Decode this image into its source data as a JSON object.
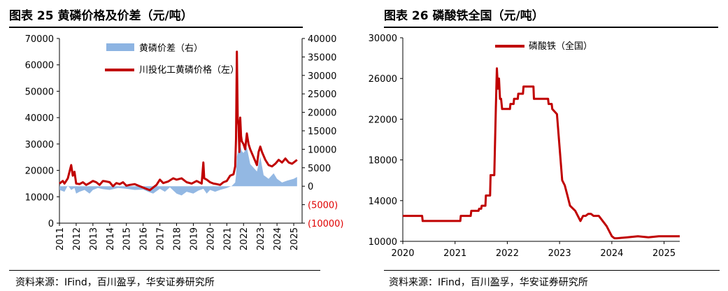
{
  "left": {
    "title": "图表 25 黄磷价格及价差（元/吨）",
    "source": "资料来源：IFind，百川盈孚，华安证券研究所",
    "chart_data": {
      "type": "line",
      "legend_position": "top-center",
      "legend": [
        "黄磷价差（右）",
        "川投化工黄磷价格（左）"
      ],
      "left_axis": {
        "ylim": [
          0,
          70000
        ],
        "ticks": [
          "0",
          "10000",
          "20000",
          "30000",
          "40000",
          "50000",
          "60000",
          "70000"
        ]
      },
      "right_axis": {
        "ylim": [
          -10000,
          40000
        ],
        "ticks": [
          "(10000)",
          "(5000)",
          "0",
          "5000",
          "10000",
          "15000",
          "20000",
          "25000",
          "30000",
          "35000",
          "40000"
        ]
      },
      "x_ticks": [
        "2011",
        "2012",
        "2013",
        "2014",
        "2015",
        "2016",
        "2017",
        "2018",
        "2019",
        "2020",
        "2021",
        "2022",
        "2023",
        "2024",
        "2025"
      ],
      "series": [
        {
          "name": "川投化工黄磷价格（左）",
          "type": "line",
          "axis": "left",
          "color": "#c00000",
          "x": [
            2011.0,
            2011.2,
            2011.3,
            2011.5,
            2011.7,
            2011.8,
            2011.9,
            2012.0,
            2012.2,
            2012.4,
            2012.6,
            2012.8,
            2013.0,
            2013.2,
            2013.4,
            2013.6,
            2013.8,
            2014.0,
            2014.2,
            2014.4,
            2014.6,
            2014.8,
            2015.0,
            2015.2,
            2015.5,
            2015.8,
            2016.0,
            2016.2,
            2016.4,
            2016.6,
            2016.8,
            2017.0,
            2017.2,
            2017.5,
            2017.8,
            2018.0,
            2018.3,
            2018.6,
            2018.9,
            2019.2,
            2019.5,
            2019.6,
            2019.65,
            2019.8,
            2020.0,
            2020.2,
            2020.4,
            2020.6,
            2020.8,
            2021.0,
            2021.2,
            2021.4,
            2021.5,
            2021.55,
            2021.6,
            2021.65,
            2021.7,
            2021.75,
            2021.8,
            2021.85,
            2021.9,
            2022.0,
            2022.1,
            2022.2,
            2022.3,
            2022.4,
            2022.6,
            2022.8,
            2022.9,
            2023.0,
            2023.1,
            2023.3,
            2023.5,
            2023.7,
            2023.9,
            2024.1,
            2024.3,
            2024.5,
            2024.7,
            2024.9,
            2025.1,
            2025.2
          ],
          "y": [
            15000,
            16000,
            15000,
            17000,
            22000,
            18000,
            19500,
            15000,
            14800,
            15500,
            14500,
            15200,
            16000,
            15500,
            14500,
            16000,
            15800,
            15500,
            14000,
            15200,
            14800,
            15500,
            14200,
            14500,
            14800,
            14000,
            13500,
            13000,
            12500,
            13500,
            14500,
            16500,
            15200,
            15800,
            17000,
            16500,
            17000,
            15500,
            15000,
            16000,
            15000,
            23000,
            17000,
            16500,
            15500,
            15000,
            14800,
            14500,
            15500,
            16000,
            18000,
            18500,
            21500,
            32000,
            65000,
            40000,
            37000,
            27000,
            40000,
            33000,
            31000,
            30000,
            28000,
            34000,
            30000,
            28000,
            25000,
            22000,
            27000,
            29000,
            27000,
            24000,
            22000,
            21500,
            22500,
            24000,
            23000,
            24500,
            23000,
            22500,
            23500,
            24000
          ]
        },
        {
          "name": "黄磷价差（右）",
          "type": "area",
          "axis": "right",
          "color": "#8db4e2",
          "x": [
            2011.0,
            2011.3,
            2011.5,
            2011.7,
            2011.9,
            2012.0,
            2012.2,
            2012.5,
            2012.8,
            2013.0,
            2013.3,
            2013.6,
            2014.0,
            2014.5,
            2015.0,
            2015.5,
            2016.0,
            2016.3,
            2016.6,
            2017.0,
            2017.3,
            2017.6,
            2018.0,
            2018.3,
            2018.6,
            2019.0,
            2019.3,
            2019.6,
            2019.8,
            2020.0,
            2020.3,
            2020.6,
            2021.0,
            2021.3,
            2021.5,
            2021.55,
            2021.6,
            2021.7,
            2021.8,
            2021.9,
            2022.0,
            2022.2,
            2022.4,
            2022.6,
            2022.8,
            2023.0,
            2023.2,
            2023.5,
            2023.8,
            2024.0,
            2024.3,
            2024.6,
            2025.0,
            2025.2
          ],
          "y": [
            -1000,
            -1500,
            200,
            -1000,
            -500,
            -2000,
            -1500,
            -1000,
            -2000,
            -1000,
            -500,
            -800,
            -1000,
            -500,
            -700,
            -1000,
            -900,
            -1500,
            -2000,
            -700,
            -1500,
            -300,
            -2000,
            -2500,
            -1500,
            -2000,
            -1200,
            -700,
            -2000,
            -1000,
            -1500,
            -1000,
            -500,
            100,
            1000,
            3000,
            8000,
            10000,
            11000,
            9500,
            9000,
            10500,
            6000,
            5000,
            4000,
            8000,
            3000,
            2000,
            3500,
            2000,
            1000,
            1500,
            2000,
            2500
          ]
        }
      ]
    }
  },
  "right": {
    "title": "图表 26 磷酸铁全国（元/吨）",
    "source": "资料来源：IFind，百川盈孚，华安证券研究所",
    "chart_data": {
      "type": "line",
      "legend_position": "top-center",
      "legend": [
        "磷酸铁（全国）"
      ],
      "ylim": [
        10000,
        30000
      ],
      "y_ticks": [
        "10000",
        "14000",
        "18000",
        "22000",
        "26000",
        "30000"
      ],
      "xlim": [
        2020,
        2025.3
      ],
      "x_ticks": [
        "2020",
        "2021",
        "2022",
        "2023",
        "2024",
        "2025"
      ],
      "series": [
        {
          "name": "磷酸铁（全国）",
          "color": "#c00000",
          "x": [
            2020.0,
            2020.37,
            2020.38,
            2021.1,
            2021.11,
            2021.3,
            2021.31,
            2021.45,
            2021.46,
            2021.5,
            2021.51,
            2021.58,
            2021.59,
            2021.67,
            2021.68,
            2021.75,
            2021.78,
            2021.8,
            2021.82,
            2021.84,
            2021.86,
            2021.88,
            2021.9,
            2022.05,
            2022.06,
            2022.12,
            2022.13,
            2022.2,
            2022.21,
            2022.3,
            2022.31,
            2022.5,
            2022.51,
            2022.78,
            2022.79,
            2022.85,
            2022.86,
            2022.95,
            2023.05,
            2023.1,
            2023.15,
            2023.2,
            2023.3,
            2023.4,
            2023.45,
            2023.5,
            2023.55,
            2023.6,
            2023.65,
            2023.75,
            2023.9,
            2024.0,
            2024.05,
            2024.1,
            2024.3,
            2024.5,
            2024.7,
            2024.9,
            2025.0,
            2025.3
          ],
          "y": [
            12500,
            12500,
            12000,
            12000,
            12500,
            12500,
            13000,
            13000,
            13200,
            13200,
            13500,
            13500,
            14500,
            14500,
            16500,
            16500,
            23000,
            27000,
            25000,
            26000,
            24000,
            24000,
            23000,
            23000,
            23500,
            23500,
            24000,
            24000,
            24500,
            24500,
            25200,
            25200,
            24000,
            24000,
            23500,
            23500,
            23000,
            22500,
            16000,
            15500,
            14500,
            13500,
            13000,
            12000,
            12500,
            12500,
            12700,
            12700,
            12500,
            12500,
            11500,
            10500,
            10300,
            10300,
            10400,
            10500,
            10400,
            10500,
            10500,
            10500
          ]
        }
      ]
    }
  }
}
